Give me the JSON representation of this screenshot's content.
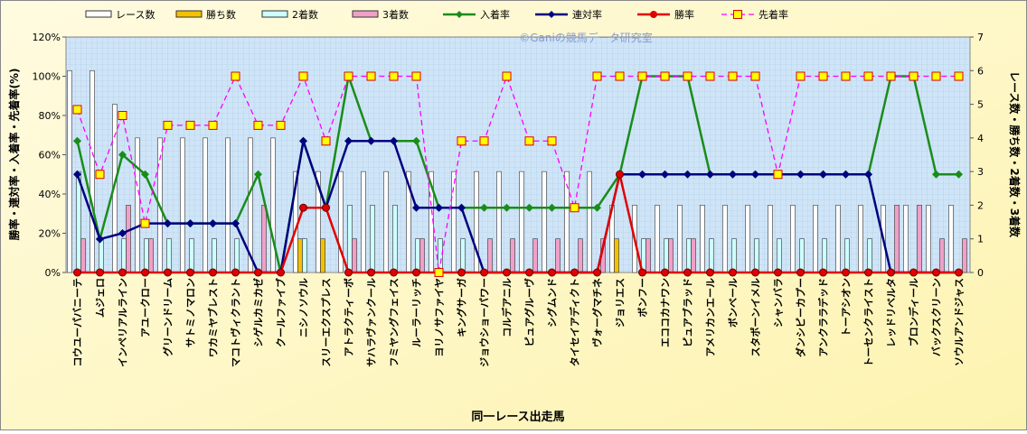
{
  "chart_data": {
    "type": "combo",
    "watermark": "©Ganiの競馬データ研究室",
    "x_label": "同一レース出走馬",
    "y_label": "勝率・連対率・入着率・先着率(%)",
    "y2_label": "レース数・勝ち数・2着数・3着数",
    "categories": [
      "コウユーパバニーテ",
      "ムジェロ",
      "インペリアルライン",
      "アユークロー",
      "グリーンドリーム",
      "サトミノマロン",
      "ワカミヤブレスト",
      "マコトヴィクラント",
      "シゲルカミカゼ",
      "クールファイブ",
      "ニシノソウル",
      "スリーエクスプレス",
      "アトラクティーボ",
      "サハラヴァンクール",
      "フミヤングフェイス",
      "ルーラーリッチ",
      "ヨリノサファイヤ",
      "キングサーガ",
      "ジョウショーパワー",
      "コルデアニル",
      "ピュアグルーヴ",
      "シグムンド",
      "タイセイアディクト",
      "ヴォーグマチネ",
      "ジョリエス",
      "ボンフー",
      "エココカナワン",
      "ピュアブラッド",
      "アメリカンエール",
      "ボンベール",
      "スタポーンイメル",
      "シャンバラ",
      "ダンシピーカプー",
      "アンクララデッド",
      "トーアシオン",
      "トーセンクライスト",
      "レッドリベルタ",
      "ブロンディール",
      "バックスクリーン",
      "ソウルアンドジャス"
    ],
    "ylim": [
      0,
      120
    ],
    "yticks": [
      {
        "value": 0,
        "label": "0%"
      },
      {
        "value": 20,
        "label": "20%"
      },
      {
        "value": 40,
        "label": "40%"
      },
      {
        "value": 60,
        "label": "60%"
      },
      {
        "value": 80,
        "label": "80%"
      },
      {
        "value": 100,
        "label": "100%"
      },
      {
        "value": 120,
        "label": "120%"
      }
    ],
    "y2lim": [
      0,
      7
    ],
    "y2ticks": [
      0,
      1,
      2,
      3,
      4,
      5,
      6,
      7
    ],
    "series": [
      {
        "name": "レース数",
        "type": "bar",
        "axis": "y2",
        "color": "#ffffff",
        "values": [
          6,
          6,
          5,
          4,
          4,
          4,
          4,
          4,
          4,
          4,
          3,
          3,
          3,
          3,
          3,
          3,
          3,
          3,
          3,
          3,
          3,
          3,
          3,
          3,
          2,
          2,
          2,
          2,
          2,
          2,
          2,
          2,
          2,
          2,
          2,
          2,
          2,
          2,
          2,
          2
        ]
      },
      {
        "name": "勝ち数",
        "type": "bar",
        "axis": "y2",
        "color": "#f5c000",
        "values": [
          0,
          0,
          0,
          0,
          0,
          0,
          0,
          0,
          0,
          0,
          1,
          1,
          0,
          0,
          0,
          0,
          0,
          0,
          0,
          0,
          0,
          0,
          0,
          0,
          1,
          0,
          0,
          0,
          0,
          0,
          0,
          0,
          0,
          0,
          0,
          0,
          0,
          0,
          0,
          0
        ]
      },
      {
        "name": "2着数",
        "type": "bar",
        "axis": "y2",
        "color": "#ccffff",
        "values": [
          3,
          1,
          1,
          1,
          1,
          1,
          1,
          1,
          0,
          0,
          1,
          0,
          2,
          2,
          2,
          1,
          1,
          1,
          0,
          0,
          0,
          0,
          0,
          0,
          0,
          1,
          1,
          1,
          1,
          1,
          1,
          1,
          1,
          1,
          1,
          1,
          0,
          0,
          0,
          0
        ]
      },
      {
        "name": "3着数",
        "type": "bar",
        "axis": "y2",
        "color": "#f0a0c8",
        "values": [
          1,
          0,
          2,
          1,
          0,
          0,
          0,
          0,
          2,
          0,
          0,
          0,
          1,
          0,
          0,
          1,
          0,
          0,
          1,
          1,
          1,
          1,
          1,
          1,
          0,
          1,
          1,
          1,
          0,
          0,
          0,
          0,
          0,
          0,
          0,
          0,
          2,
          2,
          1,
          1
        ]
      },
      {
        "name": "入着率",
        "type": "line",
        "color": "#1a8c1a",
        "marker": "diamond",
        "values": [
          67,
          17,
          60,
          50,
          25,
          25,
          25,
          25,
          50,
          0,
          67,
          33,
          100,
          67,
          67,
          67,
          33,
          33,
          33,
          33,
          33,
          33,
          33,
          33,
          50,
          100,
          100,
          100,
          50,
          50,
          50,
          50,
          50,
          50,
          50,
          50,
          100,
          100,
          50,
          50
        ]
      },
      {
        "name": "連対率",
        "type": "line",
        "color": "#000080",
        "marker": "diamond",
        "values": [
          50,
          17,
          20,
          25,
          25,
          25,
          25,
          25,
          0,
          0,
          67,
          33,
          67,
          67,
          67,
          33,
          33,
          33,
          0,
          0,
          0,
          0,
          0,
          0,
          50,
          50,
          50,
          50,
          50,
          50,
          50,
          50,
          50,
          50,
          50,
          50,
          0,
          0,
          0,
          0
        ]
      },
      {
        "name": "勝率",
        "type": "line",
        "color": "#e00000",
        "marker": "circle",
        "values": [
          0,
          0,
          0,
          0,
          0,
          0,
          0,
          0,
          0,
          0,
          33,
          33,
          0,
          0,
          0,
          0,
          0,
          0,
          0,
          0,
          0,
          0,
          0,
          0,
          50,
          0,
          0,
          0,
          0,
          0,
          0,
          0,
          0,
          0,
          0,
          0,
          0,
          0,
          0,
          0
        ]
      },
      {
        "name": "先着率",
        "type": "line",
        "color": "#ff00ff",
        "marker": "square",
        "dashed": true,
        "values": [
          83,
          50,
          80,
          25,
          75,
          75,
          75,
          100,
          75,
          75,
          100,
          67,
          100,
          100,
          100,
          100,
          0,
          67,
          67,
          100,
          67,
          67,
          33,
          100,
          100,
          100,
          100,
          100,
          100,
          100,
          100,
          50,
          100,
          100,
          100,
          100,
          100,
          100,
          100,
          100
        ]
      }
    ]
  }
}
